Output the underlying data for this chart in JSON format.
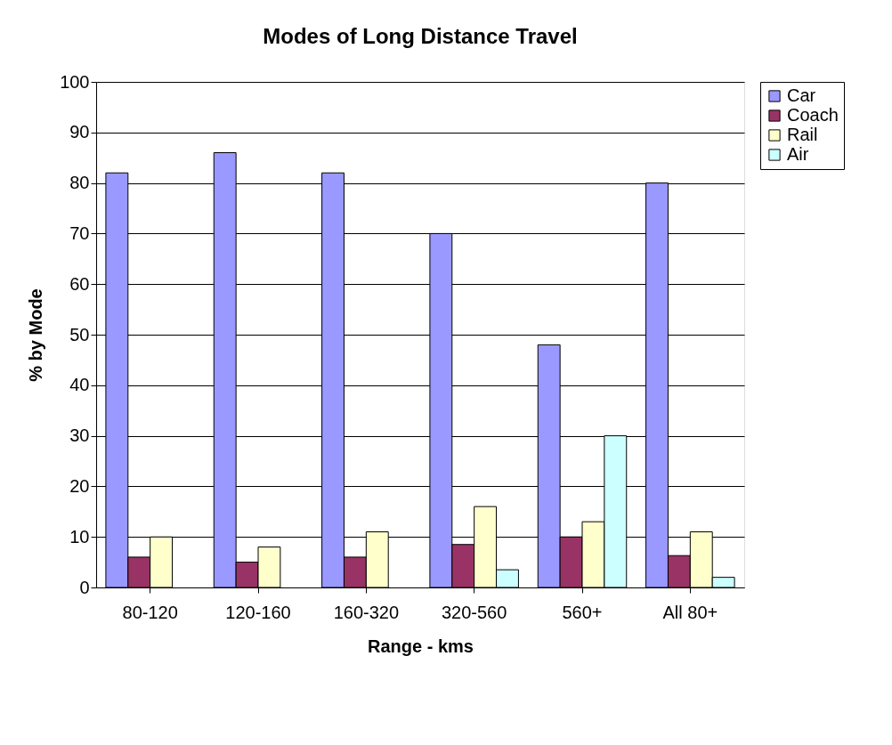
{
  "chart_data": {
    "type": "bar",
    "title": "Modes of Long Distance Travel",
    "xlabel": "Range - kms",
    "ylabel": "% by Mode",
    "categories": [
      "80-120",
      "120-160",
      "160-320",
      "320-560",
      "560+",
      "All 80+"
    ],
    "series": [
      {
        "name": "Car",
        "color": "#9999ff",
        "values": [
          82,
          86,
          82,
          70,
          48,
          80
        ]
      },
      {
        "name": "Coach",
        "color": "#993366",
        "values": [
          6,
          5,
          6,
          8.5,
          10,
          6.3
        ]
      },
      {
        "name": "Rail",
        "color": "#ffffcc",
        "values": [
          10,
          8,
          11,
          16,
          13,
          11
        ]
      },
      {
        "name": "Air",
        "color": "#ccffff",
        "values": [
          null,
          null,
          null,
          3.5,
          30,
          2
        ]
      }
    ],
    "ylim": [
      0,
      100
    ],
    "yticks": [
      0,
      10,
      20,
      30,
      40,
      50,
      60,
      70,
      80,
      90,
      100
    ],
    "grid": "y",
    "legend": "right"
  }
}
